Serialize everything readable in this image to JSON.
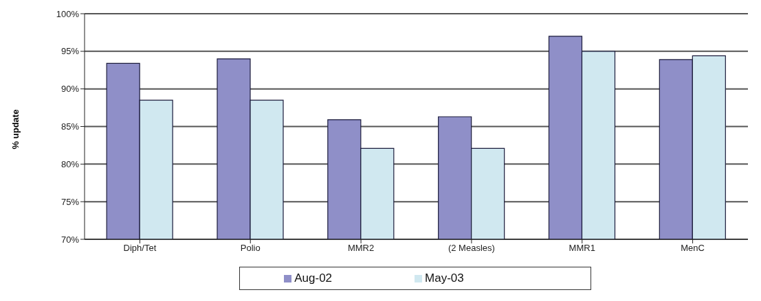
{
  "chart_data": {
    "type": "bar",
    "ylabel": "% update",
    "categories": [
      "Diph/Tet",
      "Polio",
      "MMR2",
      "(2 Measles)",
      "MMR1",
      "MenC"
    ],
    "series": [
      {
        "name": "Aug-02",
        "color": "#8f8fc8",
        "values": [
          93.4,
          94.0,
          85.9,
          86.3,
          97.0,
          93.9
        ]
      },
      {
        "name": "May-03",
        "color": "#d0e8f0",
        "values": [
          88.5,
          88.5,
          82.1,
          82.1,
          95.0,
          94.4
        ]
      }
    ],
    "ylim": [
      70,
      100
    ],
    "yticks": [
      {
        "value": 70,
        "label": "70%"
      },
      {
        "value": 75,
        "label": "75%"
      },
      {
        "value": 80,
        "label": "80%"
      },
      {
        "value": 85,
        "label": "85%"
      },
      {
        "value": 90,
        "label": "90%"
      },
      {
        "value": 95,
        "label": "95%"
      },
      {
        "value": 100,
        "label": "100%"
      }
    ],
    "grid": "y",
    "legend": "bottom"
  }
}
